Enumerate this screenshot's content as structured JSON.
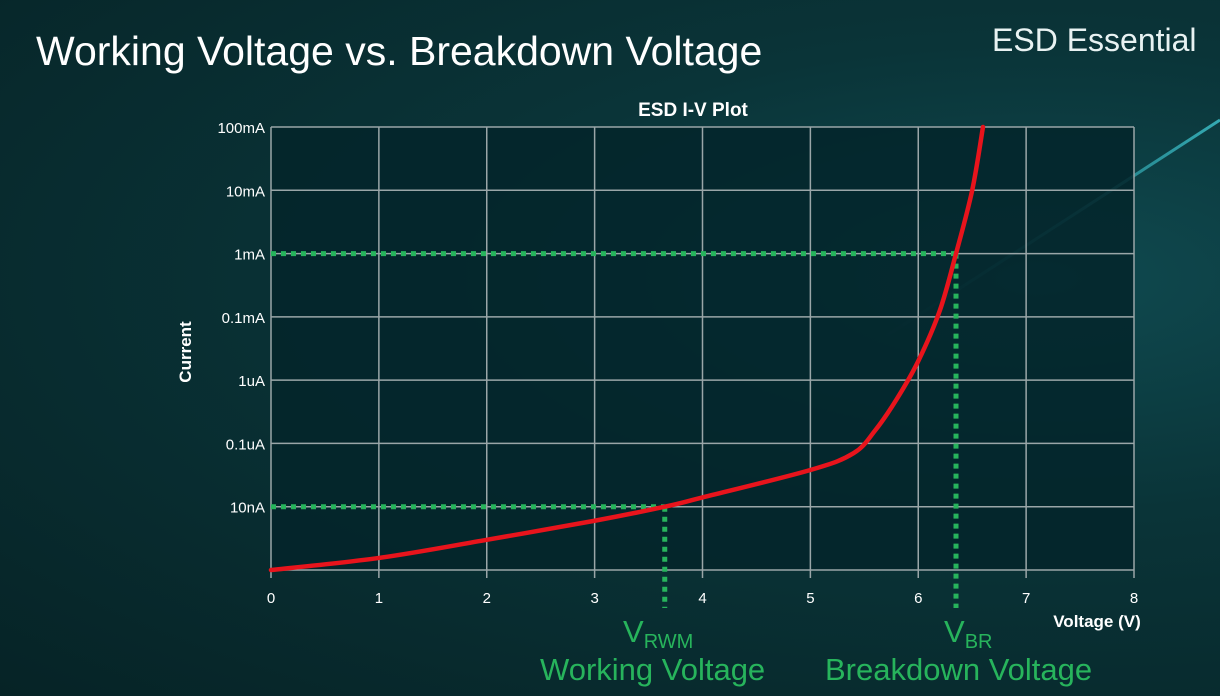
{
  "slide": {
    "title": "Working Voltage vs. Breakdown Voltage",
    "brand": "ESD Essential"
  },
  "colors": {
    "curve": "#e8141c",
    "annotation": "#27b45c",
    "grid": "#9aa6a8",
    "plot_bg": "#03252a"
  },
  "chart_data": {
    "type": "line",
    "title": "ESD I-V Plot",
    "xlabel": "Voltage (V)",
    "ylabel": "Current",
    "xlim": [
      0,
      8
    ],
    "x_ticks": [
      "0",
      "1",
      "2",
      "3",
      "4",
      "5",
      "6",
      "7",
      "8"
    ],
    "y_scale": "log",
    "y_ticks": [
      {
        "label": "10nA",
        "value": 1e-08
      },
      {
        "label": "0.1uA",
        "value": 1e-07
      },
      {
        "label": "1uA",
        "value": 1e-06
      },
      {
        "label": "0.1mA",
        "value": 0.0001
      },
      {
        "label": "1mA",
        "value": 0.001
      },
      {
        "label": "10mA",
        "value": 0.01
      },
      {
        "label": "100mA",
        "value": 0.1
      }
    ],
    "ylim": [
      1e-09,
      0.1
    ],
    "grid": true,
    "series": [
      {
        "x": [
          0,
          1,
          2,
          3,
          3.65,
          4,
          5,
          5.4,
          5.6,
          5.8,
          6,
          6.2,
          6.35,
          6.5,
          6.6
        ],
        "y": [
          1e-09,
          1.55e-09,
          3e-09,
          6e-09,
          1e-08,
          1.4e-08,
          3.8e-08,
          7e-08,
          1.6e-07,
          5e-07,
          4e-06,
          0.000126,
          0.001,
          0.01,
          0.1
        ]
      }
    ],
    "annotations": [
      {
        "x": 3.65,
        "y": 1e-08,
        "symbol": "V",
        "subscript": "RWM",
        "label": "Working Voltage"
      },
      {
        "x": 6.35,
        "y": 0.001,
        "symbol": "V",
        "subscript": "BR",
        "label": "Breakdown Voltage"
      }
    ]
  }
}
